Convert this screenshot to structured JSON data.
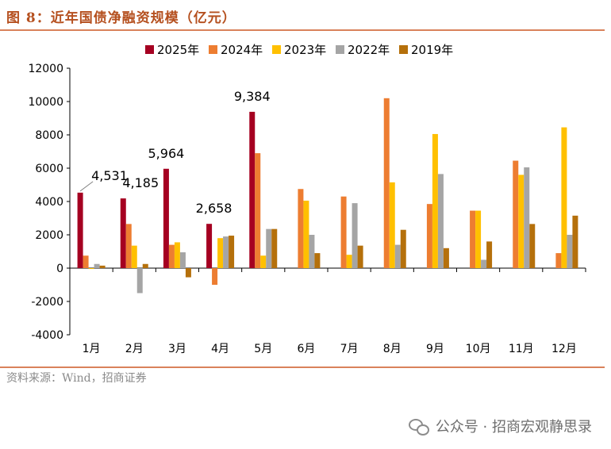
{
  "title": "图 8：近年国债净融资规模（亿元）",
  "source": "资料来源：Wind，招商证券",
  "watermark": "公众号 · 招商宏观静思录",
  "chart_data": {
    "type": "bar",
    "categories": [
      "1月",
      "2月",
      "3月",
      "4月",
      "5月",
      "6月",
      "7月",
      "8月",
      "9月",
      "10月",
      "11月",
      "12月"
    ],
    "ylim": [
      -4000,
      12000
    ],
    "yticks": [
      -4000,
      -2000,
      0,
      2000,
      4000,
      6000,
      8000,
      10000,
      12000
    ],
    "ytick_labels": [
      "-4000",
      "-2000",
      "0",
      "2000",
      "4000",
      "6000",
      "8000",
      "10000",
      "12000"
    ],
    "legend_position": "top",
    "grid": false,
    "series": [
      {
        "name": "2025年",
        "color": "#a50021",
        "values": [
          4531,
          4185,
          5964,
          2658,
          9384,
          null,
          null,
          null,
          null,
          null,
          null,
          null
        ]
      },
      {
        "name": "2024年",
        "color": "#ed7d31",
        "values": [
          750,
          2650,
          1400,
          -1000,
          6900,
          4750,
          4300,
          10200,
          3850,
          3450,
          6450,
          900
        ]
      },
      {
        "name": "2023年",
        "color": "#ffc000",
        "values": [
          -50,
          1350,
          1550,
          1800,
          750,
          4050,
          800,
          5150,
          8050,
          3450,
          5600,
          8450
        ]
      },
      {
        "name": "2022年",
        "color": "#a5a5a5",
        "values": [
          250,
          -1500,
          950,
          1900,
          2350,
          2000,
          3900,
          1400,
          5650,
          500,
          6050,
          2000
        ]
      },
      {
        "name": "2019年",
        "color": "#b5700b",
        "values": [
          150,
          250,
          -550,
          1950,
          2350,
          900,
          1350,
          2300,
          1200,
          1600,
          2650,
          3150
        ]
      }
    ],
    "annotations": [
      {
        "category": "1月",
        "series": "2025年",
        "text": "4,531"
      },
      {
        "category": "2月",
        "series": "2025年",
        "text": "4,185"
      },
      {
        "category": "3月",
        "series": "2025年",
        "text": "5,964"
      },
      {
        "category": "4月",
        "series": "2025年",
        "text": "2,658"
      },
      {
        "category": "5月",
        "series": "2025年",
        "text": "9,384"
      }
    ]
  }
}
